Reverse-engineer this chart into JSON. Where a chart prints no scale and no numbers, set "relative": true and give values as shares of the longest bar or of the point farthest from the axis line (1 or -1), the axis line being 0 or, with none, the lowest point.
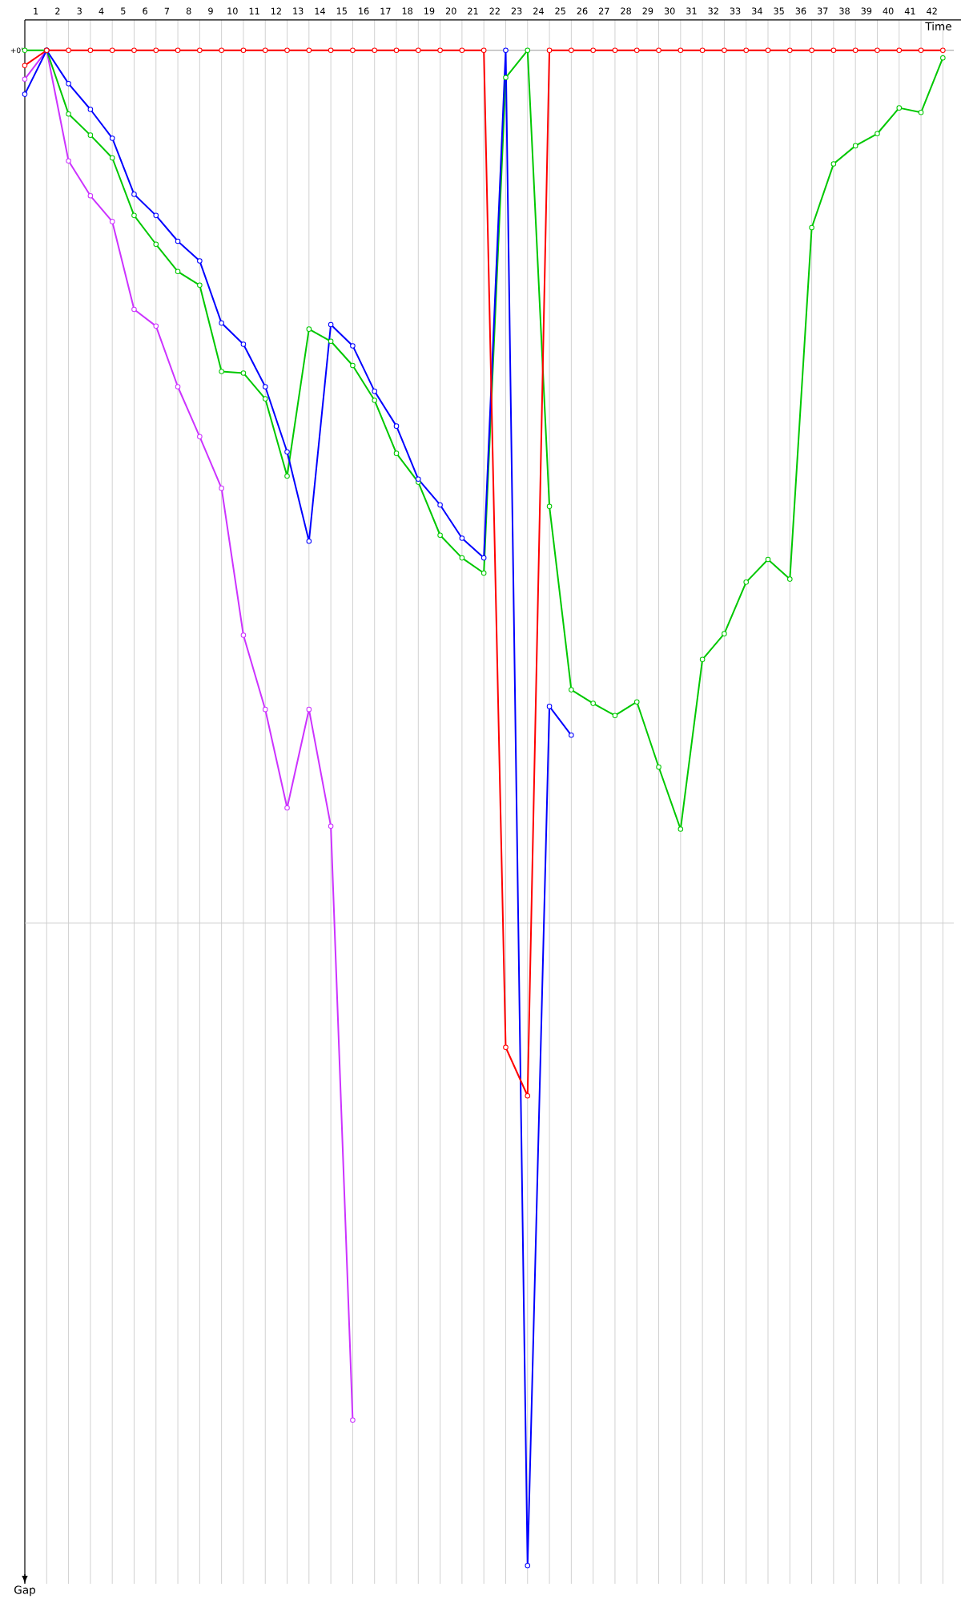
{
  "chart_data": {
    "type": "line",
    "xlabel": "Time",
    "ylabel": "Gap",
    "relative": true,
    "marker": "circle",
    "line_style": "solid",
    "grid": "x",
    "x": [
      0,
      1,
      2,
      3,
      4,
      5,
      6,
      7,
      8,
      9,
      10,
      11,
      12,
      13,
      14,
      15,
      16,
      17,
      18,
      19,
      20,
      21,
      22,
      23,
      24,
      25,
      26,
      27,
      28,
      29,
      30,
      31,
      32,
      33,
      34,
      35,
      36,
      37,
      38,
      39,
      40,
      41,
      42
    ],
    "xlim": [
      0,
      42.5
    ],
    "xticks": [
      {
        "value": 0.5,
        "label": "1"
      },
      {
        "value": 1.5,
        "label": "2"
      },
      {
        "value": 2.5,
        "label": "3"
      },
      {
        "value": 3.5,
        "label": "4"
      },
      {
        "value": 4.5,
        "label": "5"
      },
      {
        "value": 5.5,
        "label": "6"
      },
      {
        "value": 6.5,
        "label": "7"
      },
      {
        "value": 7.5,
        "label": "8"
      },
      {
        "value": 8.5,
        "label": "9"
      },
      {
        "value": 9.5,
        "label": "10"
      },
      {
        "value": 10.5,
        "label": "11"
      },
      {
        "value": 11.5,
        "label": "12"
      },
      {
        "value": 12.5,
        "label": "13"
      },
      {
        "value": 13.5,
        "label": "14"
      },
      {
        "value": 14.5,
        "label": "15"
      },
      {
        "value": 15.5,
        "label": "16"
      },
      {
        "value": 16.5,
        "label": "17"
      },
      {
        "value": 17.5,
        "label": "18"
      },
      {
        "value": 18.5,
        "label": "19"
      },
      {
        "value": 19.5,
        "label": "20"
      },
      {
        "value": 20.5,
        "label": "21"
      },
      {
        "value": 21.5,
        "label": "22"
      },
      {
        "value": 22.5,
        "label": "23"
      },
      {
        "value": 23.5,
        "label": "24"
      },
      {
        "value": 24.5,
        "label": "25"
      },
      {
        "value": 25.5,
        "label": "26"
      },
      {
        "value": 26.5,
        "label": "27"
      },
      {
        "value": 27.5,
        "label": "28"
      },
      {
        "value": 28.5,
        "label": "29"
      },
      {
        "value": 29.5,
        "label": "30"
      },
      {
        "value": 30.5,
        "label": "31"
      },
      {
        "value": 31.5,
        "label": "32"
      },
      {
        "value": 32.5,
        "label": "33"
      },
      {
        "value": 33.5,
        "label": "34"
      },
      {
        "value": 34.5,
        "label": "35"
      },
      {
        "value": 35.5,
        "label": "36"
      },
      {
        "value": 36.5,
        "label": "37"
      },
      {
        "value": 37.5,
        "label": "38"
      },
      {
        "value": 38.5,
        "label": "39"
      },
      {
        "value": 39.5,
        "label": "40"
      },
      {
        "value": 40.5,
        "label": "41"
      },
      {
        "value": 41.5,
        "label": "42"
      },
      {
        "value": 1,
        "label": null
      },
      {
        "value": 2,
        "label": null
      },
      {
        "value": 3,
        "label": null
      },
      {
        "value": 4,
        "label": null
      },
      {
        "value": 5,
        "label": null
      },
      {
        "value": 6,
        "label": null
      },
      {
        "value": 7,
        "label": null
      },
      {
        "value": 8,
        "label": null
      },
      {
        "value": 9,
        "label": null
      },
      {
        "value": 10,
        "label": null
      },
      {
        "value": 11,
        "label": null
      },
      {
        "value": 12,
        "label": null
      },
      {
        "value": 13,
        "label": null
      },
      {
        "value": 14,
        "label": null
      },
      {
        "value": 15,
        "label": null
      },
      {
        "value": 16,
        "label": null
      },
      {
        "value": 17,
        "label": null
      },
      {
        "value": 18,
        "label": null
      },
      {
        "value": 19,
        "label": null
      },
      {
        "value": 20,
        "label": null
      },
      {
        "value": 21,
        "label": null
      },
      {
        "value": 22,
        "label": null
      },
      {
        "value": 23,
        "label": null
      },
      {
        "value": 24,
        "label": null
      },
      {
        "value": 25,
        "label": null
      },
      {
        "value": 26,
        "label": null
      },
      {
        "value": 27,
        "label": null
      },
      {
        "value": 28,
        "label": null
      },
      {
        "value": 29,
        "label": null
      },
      {
        "value": 30,
        "label": null
      },
      {
        "value": 31,
        "label": null
      },
      {
        "value": 32,
        "label": null
      },
      {
        "value": 33,
        "label": null
      },
      {
        "value": 34,
        "label": null
      },
      {
        "value": 35,
        "label": null
      },
      {
        "value": 36,
        "label": null
      },
      {
        "value": 37,
        "label": null
      },
      {
        "value": 38,
        "label": null
      },
      {
        "value": 39,
        "label": null
      },
      {
        "value": 40,
        "label": null
      },
      {
        "value": 41,
        "label": null
      },
      {
        "value": 42,
        "label": null
      }
    ],
    "ref_lines": [
      {
        "axis": "y",
        "value": 0,
        "label": "+0'",
        "color": "#999999"
      },
      {
        "axis": "y",
        "value": -0.576,
        "color": "#cccccc"
      }
    ],
    "series": [
      {
        "color": "#cc33ff",
        "values": [
          -0.019,
          0,
          -0.073,
          -0.096,
          -0.113,
          -0.171,
          -0.182,
          -0.222,
          -0.255,
          -0.289,
          -0.386,
          -0.435,
          -0.5,
          -0.435,
          -0.512,
          -0.904,
          null,
          null,
          null,
          null,
          null,
          null,
          null,
          null,
          null,
          null,
          null,
          null,
          null,
          null,
          null,
          null,
          null,
          null,
          null,
          null,
          null,
          null,
          null,
          null,
          null,
          null,
          null
        ]
      },
      {
        "color": "#00c800",
        "values": [
          0,
          0,
          -0.042,
          -0.056,
          -0.071,
          -0.109,
          -0.128,
          -0.146,
          -0.155,
          -0.212,
          -0.213,
          -0.23,
          -0.281,
          -0.184,
          -0.192,
          -0.208,
          -0.231,
          -0.266,
          -0.285,
          -0.32,
          -0.335,
          -0.345,
          -0.018,
          0,
          -0.301,
          -0.422,
          -0.431,
          -0.439,
          -0.43,
          -0.473,
          -0.514,
          -0.402,
          -0.385,
          -0.351,
          -0.336,
          -0.349,
          -0.117,
          -0.075,
          -0.063,
          -0.055,
          -0.038,
          -0.041,
          -0.005
        ]
      },
      {
        "color": "#0000ff",
        "values": [
          -0.029,
          0,
          -0.022,
          -0.039,
          -0.058,
          -0.095,
          -0.109,
          -0.126,
          -0.139,
          -0.18,
          -0.194,
          -0.222,
          -0.265,
          -0.324,
          -0.181,
          -0.195,
          -0.225,
          -0.248,
          -0.283,
          -0.3,
          -0.322,
          -0.335,
          0,
          -1,
          -0.433,
          -0.452,
          null,
          null,
          null,
          null,
          null,
          null,
          null,
          null,
          null,
          null,
          null,
          null,
          null,
          null,
          null,
          null,
          null
        ]
      },
      {
        "color": "#ff0000",
        "values": [
          -0.01,
          0,
          0,
          0,
          0,
          0,
          0,
          0,
          0,
          0,
          0,
          0,
          0,
          0,
          0,
          0,
          0,
          0,
          0,
          0,
          0,
          0,
          -0.658,
          -0.69,
          0,
          0,
          0,
          0,
          0,
          0,
          0,
          0,
          0,
          0,
          0,
          0,
          0,
          0,
          0,
          0,
          0,
          0,
          0
        ]
      }
    ]
  }
}
